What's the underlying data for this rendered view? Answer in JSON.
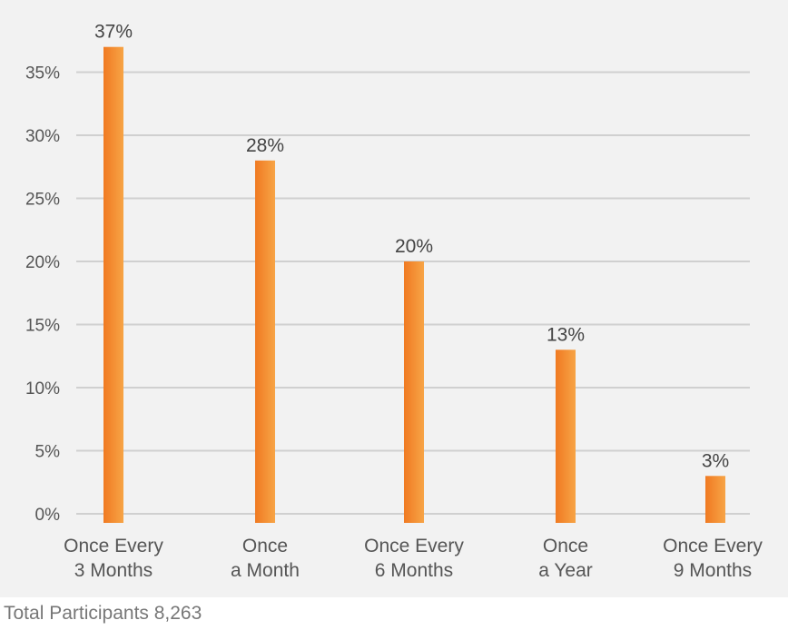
{
  "chart_data": {
    "type": "bar",
    "categories": [
      [
        "Once Every",
        "3 Months"
      ],
      [
        "Once",
        "a Month"
      ],
      [
        "Once Every",
        "6 Months"
      ],
      [
        "Once",
        "a Year"
      ],
      [
        "Once Every",
        "9 Months"
      ]
    ],
    "values": [
      37,
      28,
      20,
      13,
      3
    ],
    "value_labels": [
      "37%",
      "28%",
      "20%",
      "13%",
      "3%"
    ],
    "y_ticks": [
      0,
      5,
      10,
      15,
      20,
      25,
      30,
      35
    ],
    "y_tick_labels": [
      "0%",
      "5%",
      "10%",
      "15%",
      "20%",
      "25%",
      "30%",
      "35%"
    ],
    "ylim": [
      0,
      37
    ],
    "grid": true,
    "title": "",
    "xlabel": "",
    "ylabel": "",
    "colors": {
      "bar_light": "#f7a446",
      "bar_dark": "#f07a22"
    }
  },
  "footer": {
    "note": "Total Participants 8,263"
  }
}
